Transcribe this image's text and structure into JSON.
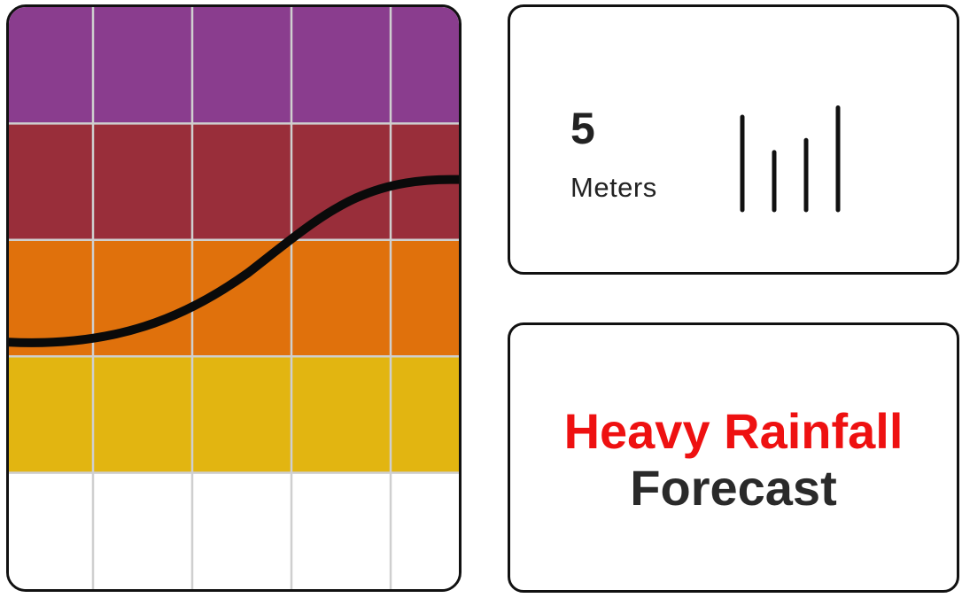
{
  "metric": {
    "value": "5",
    "unit": "Meters",
    "signal_bars": [
      1.0,
      0.62,
      0.75,
      1.1
    ]
  },
  "forecast": {
    "line1": "Heavy Rainfall",
    "line2": "Forecast",
    "line1_color": "#ee1111",
    "line2_color": "#2a2a2a"
  },
  "chart": {
    "bands": [
      "#8a3d8e",
      "#992e3a",
      "#e0710c",
      "#e2b511",
      "#ffffff"
    ],
    "grid_color": "#cfcfcf",
    "curve_color": "#0a0a0a",
    "icon": "water-level-chart-icon"
  }
}
